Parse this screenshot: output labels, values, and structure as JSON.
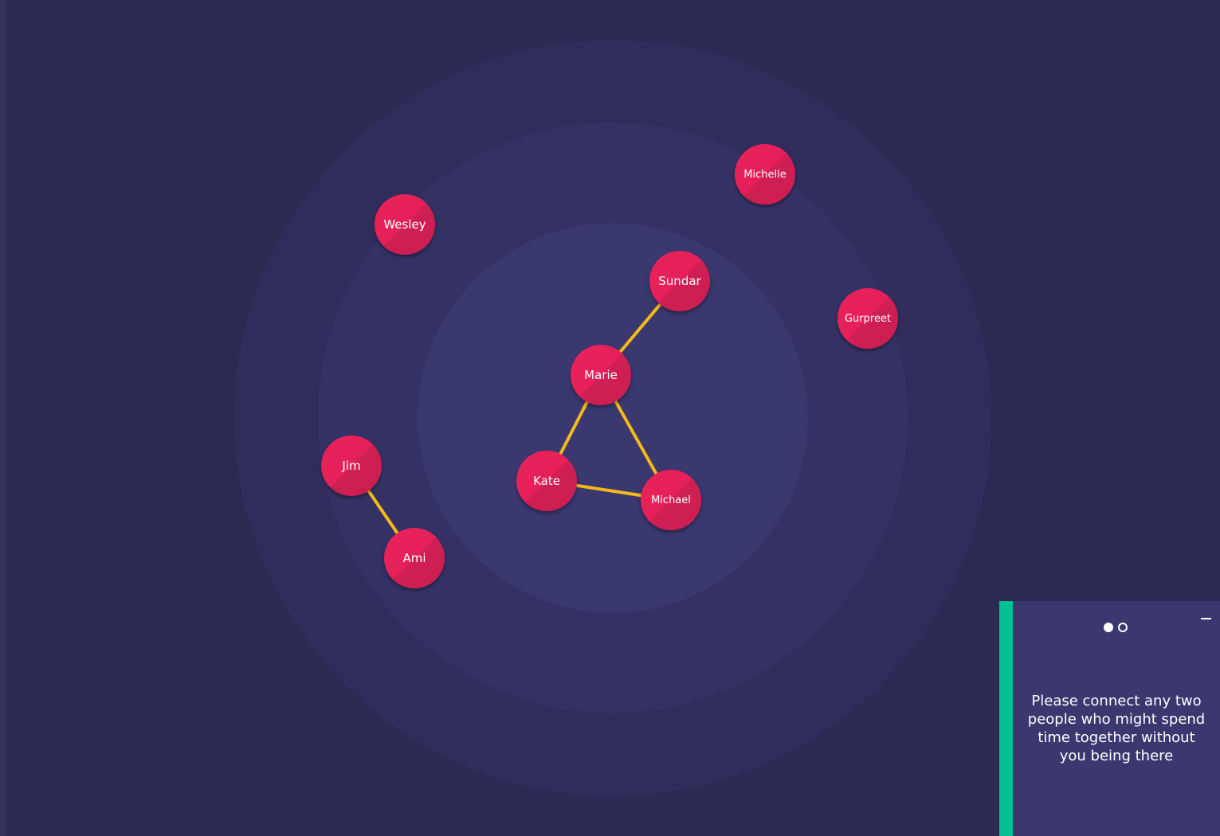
{
  "canvas": {
    "nodes": [
      {
        "id": "wesley",
        "label": "Wesley"
      },
      {
        "id": "michelle",
        "label": "Michelle"
      },
      {
        "id": "sundar",
        "label": "Sundar"
      },
      {
        "id": "gurpreet",
        "label": "Gurpreet"
      },
      {
        "id": "marie",
        "label": "Marie"
      },
      {
        "id": "jim",
        "label": "Jim"
      },
      {
        "id": "kate",
        "label": "Kate"
      },
      {
        "id": "michael",
        "label": "Michael"
      },
      {
        "id": "ami",
        "label": "Ami"
      }
    ],
    "edges": [
      [
        "sundar",
        "marie"
      ],
      [
        "marie",
        "kate"
      ],
      [
        "marie",
        "michael"
      ],
      [
        "kate",
        "michael"
      ],
      [
        "jim",
        "ami"
      ]
    ]
  },
  "colors": {
    "background": "#2c2a52",
    "node": "#e62058",
    "edge": "#f5b919",
    "panel": "#3b386f",
    "panel_accent": "#00c18f"
  },
  "prompt_panel": {
    "text": "Please connect any two people who might spend time together without you being there",
    "pagination": {
      "current": 1,
      "total": 2
    },
    "minimize_icon": "minimize-icon"
  }
}
